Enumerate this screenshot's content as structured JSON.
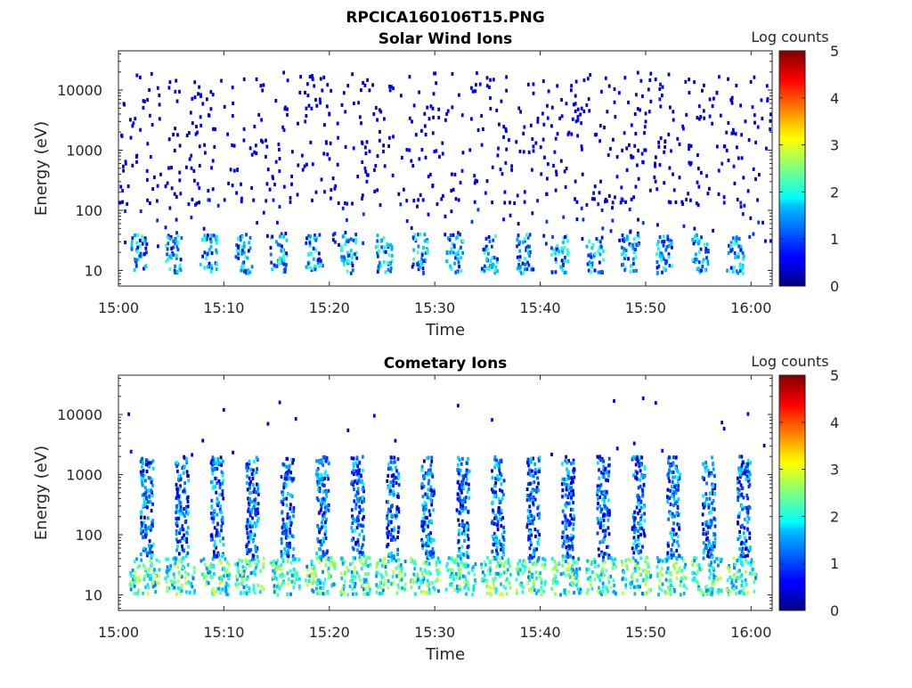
{
  "title": "RPCICA160106T15.PNG",
  "colorbar": {
    "label": "Log counts",
    "ticks": [
      "0",
      "1",
      "2",
      "3",
      "4",
      "5"
    ],
    "range": [
      0,
      5
    ]
  },
  "chart_data": [
    {
      "type": "heatmap",
      "title": "Solar Wind Ions",
      "xlabel": "Time",
      "ylabel": "Energy (eV)",
      "y_scale": "log",
      "ylim": [
        5.5,
        45000
      ],
      "xlim": [
        "15:00",
        "16:02"
      ],
      "x_ticks": [
        "15:00",
        "15:10",
        "15:20",
        "15:30",
        "15:40",
        "15:50",
        "16:00"
      ],
      "y_ticks": [
        "10",
        "100",
        "1000",
        "10000"
      ],
      "colorbar_label": "Log counts",
      "colorbar_range": [
        0,
        5
      ]
    },
    {
      "type": "heatmap",
      "title": "Cometary Ions",
      "xlabel": "Time",
      "ylabel": "Energy (eV)",
      "y_scale": "log",
      "ylim": [
        5.5,
        45000
      ],
      "xlim": [
        "15:00",
        "16:02"
      ],
      "x_ticks": [
        "15:00",
        "15:10",
        "15:20",
        "15:30",
        "15:40",
        "15:50",
        "16:00"
      ],
      "y_ticks": [
        "10",
        "100",
        "1000",
        "10000"
      ],
      "colorbar_label": "Log counts",
      "colorbar_range": [
        0,
        5
      ]
    }
  ]
}
